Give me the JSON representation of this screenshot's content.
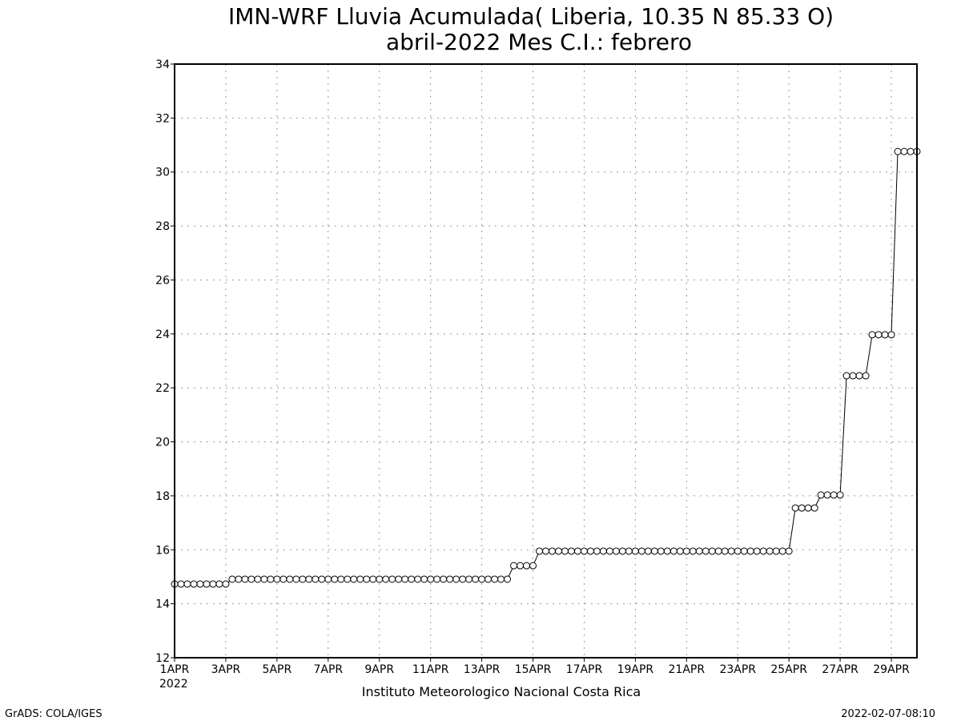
{
  "chart_data": {
    "type": "line",
    "title": "IMN-WRF  Lluvia Acumulada( Liberia, 10.35  N 85.33  O)",
    "subtitle": "abril-2022 Mes C.I.: febrero",
    "x_year_label": "2022",
    "credit": "Instituto Meteorologico Nacional Costa Rica",
    "footer_left": "GrADS: COLA/IGES",
    "footer_right": "2022-02-07-08:10",
    "xlim": [
      1,
      30
    ],
    "ylim": [
      12,
      34
    ],
    "yticks": [
      12,
      14,
      16,
      18,
      20,
      22,
      24,
      26,
      28,
      30,
      32,
      34
    ],
    "xticks": [
      {
        "value": 1,
        "label": "1APR"
      },
      {
        "value": 3,
        "label": "3APR"
      },
      {
        "value": 5,
        "label": "5APR"
      },
      {
        "value": 7,
        "label": "7APR"
      },
      {
        "value": 9,
        "label": "9APR"
      },
      {
        "value": 11,
        "label": "11APR"
      },
      {
        "value": 13,
        "label": "13APR"
      },
      {
        "value": 15,
        "label": "15APR"
      },
      {
        "value": 17,
        "label": "17APR"
      },
      {
        "value": 19,
        "label": "19APR"
      },
      {
        "value": 21,
        "label": "21APR"
      },
      {
        "value": 23,
        "label": "23APR"
      },
      {
        "value": 25,
        "label": "25APR"
      },
      {
        "value": 27,
        "label": "27APR"
      },
      {
        "value": 29,
        "label": "29APR"
      }
    ],
    "grid": true,
    "color": "#000000",
    "x": [
      1,
      1.25,
      1.5,
      1.75,
      2,
      2.25,
      2.5,
      2.75,
      3,
      3.25,
      3.5,
      3.75,
      4,
      4.25,
      4.5,
      4.75,
      5,
      5.25,
      5.5,
      5.75,
      6,
      6.25,
      6.5,
      6.75,
      7,
      7.25,
      7.5,
      7.75,
      8,
      8.25,
      8.5,
      8.75,
      9,
      9.25,
      9.5,
      9.75,
      10,
      10.25,
      10.5,
      10.75,
      11,
      11.25,
      11.5,
      11.75,
      12,
      12.25,
      12.5,
      12.75,
      13,
      13.25,
      13.5,
      13.75,
      14,
      14.25,
      14.5,
      14.75,
      15,
      15.25,
      15.5,
      15.75,
      16,
      16.25,
      16.5,
      16.75,
      17,
      17.25,
      17.5,
      17.75,
      18,
      18.25,
      18.5,
      18.75,
      19,
      19.25,
      19.5,
      19.75,
      20,
      20.25,
      20.5,
      20.75,
      21,
      21.25,
      21.5,
      21.75,
      22,
      22.25,
      22.5,
      22.75,
      23,
      23.25,
      23.5,
      23.75,
      24,
      24.25,
      24.5,
      24.75,
      25,
      25.25,
      25.5,
      25.75,
      26,
      26.25,
      26.5,
      26.75,
      27,
      27.25,
      27.5,
      27.75,
      28,
      28.25,
      28.5,
      28.75,
      29,
      29.25,
      29.5,
      29.75,
      30
    ],
    "values": [
      14.73,
      14.73,
      14.73,
      14.73,
      14.73,
      14.73,
      14.73,
      14.73,
      14.73,
      14.91,
      14.91,
      14.91,
      14.91,
      14.91,
      14.91,
      14.91,
      14.91,
      14.91,
      14.91,
      14.91,
      14.91,
      14.91,
      14.91,
      14.91,
      14.91,
      14.91,
      14.91,
      14.91,
      14.91,
      14.91,
      14.91,
      14.91,
      14.91,
      14.91,
      14.91,
      14.91,
      14.91,
      14.91,
      14.91,
      14.91,
      14.91,
      14.91,
      14.91,
      14.91,
      14.91,
      14.91,
      14.91,
      14.91,
      14.91,
      14.91,
      14.91,
      14.91,
      14.91,
      15.41,
      15.41,
      15.41,
      15.41,
      15.95,
      15.95,
      15.95,
      15.95,
      15.95,
      15.95,
      15.95,
      15.95,
      15.95,
      15.95,
      15.95,
      15.95,
      15.95,
      15.95,
      15.95,
      15.95,
      15.95,
      15.95,
      15.95,
      15.95,
      15.95,
      15.95,
      15.95,
      15.95,
      15.95,
      15.95,
      15.95,
      15.95,
      15.95,
      15.95,
      15.95,
      15.95,
      15.95,
      15.95,
      15.95,
      15.95,
      15.95,
      15.95,
      15.95,
      15.95,
      17.55,
      17.55,
      17.55,
      17.55,
      18.03,
      18.03,
      18.03,
      18.03,
      22.45,
      22.45,
      22.45,
      22.45,
      23.97,
      23.97,
      23.97,
      23.97,
      30.76,
      30.76,
      30.76,
      30.76
    ]
  }
}
